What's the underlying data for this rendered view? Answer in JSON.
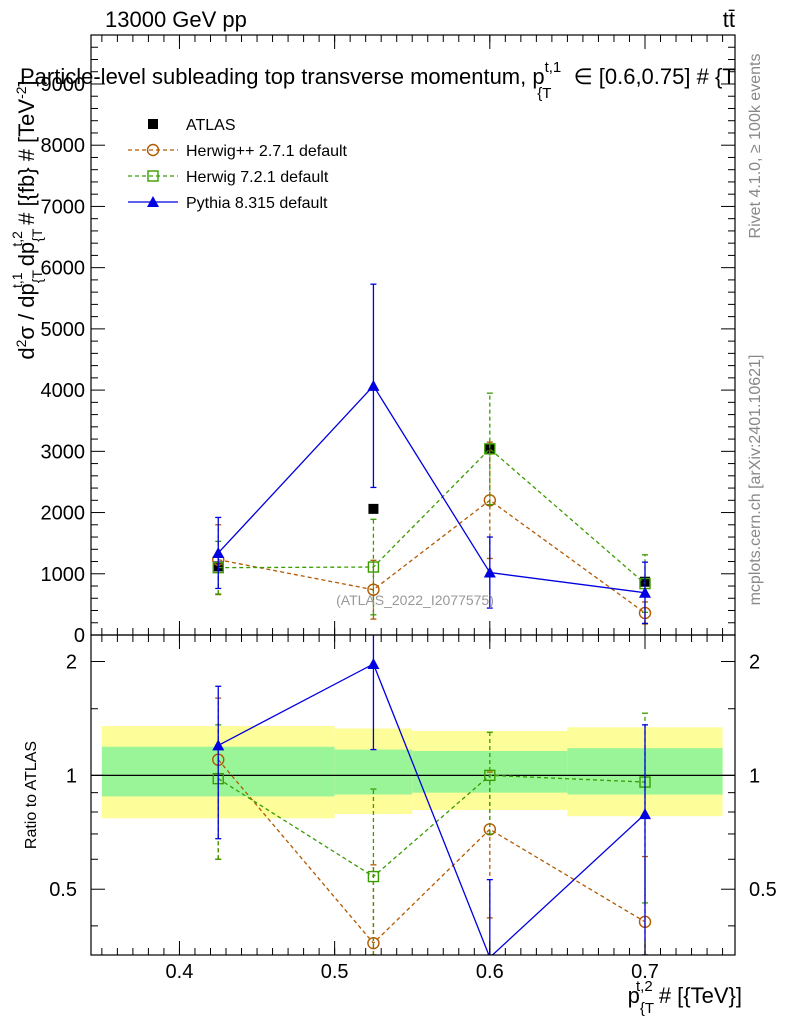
{
  "header": {
    "left": "13000 GeV pp",
    "right": "tt̄",
    "title_main": "Particle-level subleading top transverse momentum, p",
    "title_sup": "t,1",
    "title_sub": "{T",
    "title_rest": "∈ [0.6,0.75] # {T"
  },
  "side_labels": {
    "rivet": "Rivet 4.1.0, ≥ 100k events",
    "mcplots": "mcplots.cern.ch [arXiv:2401.10621]"
  },
  "watermark": "(ATLAS_2022_I2077575)",
  "colors": {
    "atlas": "#000000",
    "herwigpp": "#b35900",
    "herwig7": "#3a9c00",
    "pythia": "#0000e0",
    "band_inner": "#99f598",
    "band_outer": "#fdfd99"
  },
  "legend": [
    {
      "key": "atlas",
      "label": "ATLAS"
    },
    {
      "key": "herwigpp",
      "label": "Herwig++ 2.7.1 default"
    },
    {
      "key": "herwig7",
      "label": "Herwig 7.2.1 default"
    },
    {
      "key": "pythia",
      "label": "Pythia 8.315 default"
    }
  ],
  "chart_data": [
    {
      "type": "scatter",
      "name": "main",
      "ylabel": "d²σ / dp_{T}^{t,1} dp_{T}^{t,2} # [{fb} # [TeV]^{-2}]",
      "xlim": [
        0.343,
        0.758
      ],
      "ylim": [
        0,
        9800
      ],
      "yticks": [
        0,
        1000,
        2000,
        3000,
        4000,
        5000,
        6000,
        7000,
        8000,
        9000
      ],
      "ytick_labels": [
        "0",
        "1000",
        "2000",
        "3000",
        "4000",
        "5000",
        "6000",
        "7000",
        "8000",
        "9000"
      ],
      "series": [
        {
          "key": "atlas",
          "name": "ATLAS",
          "x": [
            0.425,
            0.525,
            0.6,
            0.7
          ],
          "y": [
            1120,
            2060,
            3040,
            870
          ],
          "err": [
            0,
            0,
            0,
            0
          ]
        },
        {
          "key": "herwigpp",
          "name": "Herwig++ 2.7.1 default",
          "x": [
            0.425,
            0.525,
            0.6,
            0.7
          ],
          "y": [
            1230,
            740,
            2200,
            360
          ],
          "err": [
            570,
            480,
            950,
            180
          ]
        },
        {
          "key": "herwig7",
          "name": "Herwig 7.2.1 default",
          "x": [
            0.425,
            0.525,
            0.6,
            0.7
          ],
          "y": [
            1100,
            1110,
            3040,
            840
          ],
          "err": [
            430,
            780,
            910,
            470
          ]
        },
        {
          "key": "pythia",
          "name": "Pythia 8.315 default",
          "x": [
            0.425,
            0.525,
            0.6,
            0.7
          ],
          "y": [
            1340,
            4070,
            1020,
            690
          ],
          "err": [
            580,
            1660,
            580,
            500
          ]
        }
      ]
    },
    {
      "type": "scatter",
      "name": "ratio",
      "ylabel": "Ratio to ATLAS",
      "xlabel": "p_{T}^{t,2} # [{TeV}]",
      "xlim": [
        0.343,
        0.758
      ],
      "ylim": [
        0.335,
        2.35
      ],
      "yticks": [
        0.5,
        1,
        2
      ],
      "ytick_labels": [
        "0.5",
        "1",
        "2"
      ],
      "xticks": [
        0.4,
        0.5,
        0.6,
        0.7
      ],
      "xtick_labels": [
        "0.4",
        "0.5",
        "0.6",
        "0.7"
      ],
      "bands": [
        {
          "x0": 0.35,
          "x1": 0.5,
          "inner": [
            0.88,
            1.19
          ],
          "outer": [
            0.77,
            1.35
          ]
        },
        {
          "x0": 0.5,
          "x1": 0.55,
          "inner": [
            0.89,
            1.17
          ],
          "outer": [
            0.79,
            1.33
          ]
        },
        {
          "x0": 0.55,
          "x1": 0.65,
          "inner": [
            0.9,
            1.16
          ],
          "outer": [
            0.81,
            1.31
          ]
        },
        {
          "x0": 0.65,
          "x1": 0.75,
          "inner": [
            0.89,
            1.18
          ],
          "outer": [
            0.78,
            1.34
          ]
        }
      ],
      "series": [
        {
          "key": "herwigpp",
          "x": [
            0.425,
            0.525,
            0.6,
            0.7
          ],
          "y": [
            1.1,
            0.36,
            0.72,
            0.41
          ],
          "err": [
            0.5,
            0.22,
            0.3,
            0.2
          ]
        },
        {
          "key": "herwig7",
          "x": [
            0.425,
            0.525,
            0.6,
            0.7
          ],
          "y": [
            0.98,
            0.54,
            1.0,
            0.96
          ],
          "err": [
            0.38,
            0.38,
            0.3,
            0.5
          ]
        },
        {
          "key": "pythia",
          "x": [
            0.425,
            0.525,
            0.6,
            0.7
          ],
          "y": [
            1.2,
            1.97,
            0.33,
            0.79
          ],
          "err": [
            0.52,
            0.8,
            0.2,
            0.57
          ]
        }
      ]
    }
  ]
}
